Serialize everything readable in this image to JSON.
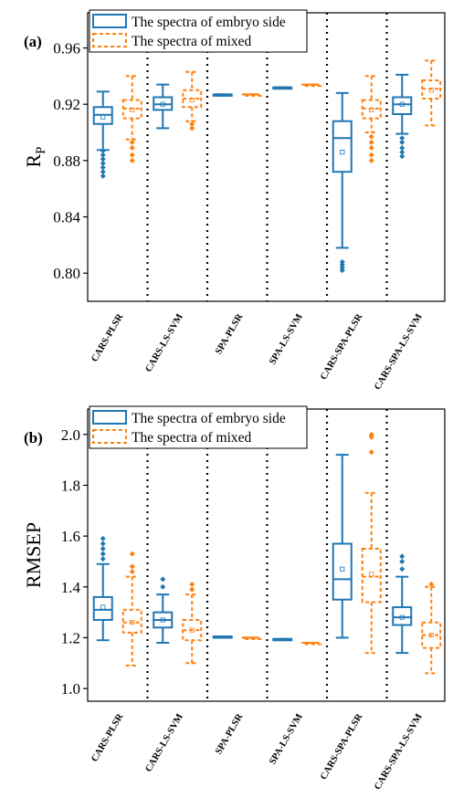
{
  "colors": {
    "embryo": "#1f77b4",
    "mixed": "#ff7f0e",
    "axis": "#000000",
    "separator": "#000000"
  },
  "chart_data": [
    {
      "type": "box",
      "panel_label": "(a)",
      "ylabel_main": "R",
      "ylabel_sub": "P",
      "ylim": [
        0.78,
        0.985
      ],
      "yticks": [
        0.8,
        0.84,
        0.88,
        0.92,
        0.96
      ],
      "ytick_labels": [
        "0.80",
        "0.84",
        "0.88",
        "0.92",
        "0.96"
      ],
      "categories": [
        "CARS-PLSR",
        "CARS-LS-SVM",
        "SPA-PLSR",
        "SPA-LS-SVM",
        "CARS-SPA-PLSR",
        "CARS-SPA-LS-SVM"
      ],
      "legend_position": "top-left",
      "series": [
        {
          "name": "The spectra of embryo side",
          "boxes": [
            {
              "whislo": 0.8875,
              "q1": 0.906,
              "med": 0.9125,
              "q3": 0.918,
              "whishi": 0.929,
              "mean": 0.911,
              "fliers": [
                0.887,
                0.884,
                0.881,
                0.878,
                0.875,
                0.872,
                0.869
              ]
            },
            {
              "whislo": 0.903,
              "q1": 0.916,
              "med": 0.92,
              "q3": 0.925,
              "whishi": 0.934,
              "mean": 0.92,
              "fliers": []
            },
            {
              "whislo": 0.927,
              "q1": 0.927,
              "med": 0.927,
              "q3": 0.927,
              "whishi": 0.927,
              "mean": 0.927,
              "fliers": []
            },
            {
              "whislo": 0.932,
              "q1": 0.932,
              "med": 0.932,
              "q3": 0.932,
              "whishi": 0.932,
              "mean": 0.932,
              "fliers": []
            },
            {
              "whislo": 0.818,
              "q1": 0.872,
              "med": 0.896,
              "q3": 0.908,
              "whishi": 0.928,
              "mean": 0.886,
              "fliers": [
                0.808,
                0.806,
                0.804,
                0.802
              ]
            },
            {
              "whislo": 0.899,
              "q1": 0.913,
              "med": 0.92,
              "q3": 0.925,
              "whishi": 0.941,
              "mean": 0.92,
              "fliers": [
                0.896,
                0.893,
                0.889,
                0.886,
                0.883
              ]
            }
          ]
        },
        {
          "name": "The spectra of mixed",
          "boxes": [
            {
              "whislo": 0.895,
              "q1": 0.91,
              "med": 0.917,
              "q3": 0.923,
              "whishi": 0.94,
              "mean": 0.916,
              "fliers": [
                0.893,
                0.889,
                0.884,
                0.88
              ]
            },
            {
              "whislo": 0.908,
              "q1": 0.918,
              "med": 0.924,
              "q3": 0.93,
              "whishi": 0.943,
              "mean": 0.923,
              "fliers": [
                0.906,
                0.903
              ]
            },
            {
              "whislo": 0.927,
              "q1": 0.927,
              "med": 0.927,
              "q3": 0.927,
              "whishi": 0.927,
              "mean": 0.927,
              "fliers": []
            },
            {
              "whislo": 0.934,
              "q1": 0.934,
              "med": 0.934,
              "q3": 0.934,
              "whishi": 0.934,
              "mean": 0.934,
              "fliers": []
            },
            {
              "whislo": 0.9,
              "q1": 0.91,
              "med": 0.917,
              "q3": 0.923,
              "whishi": 0.94,
              "mean": 0.916,
              "fliers": [
                0.897,
                0.893,
                0.889,
                0.884,
                0.88
              ]
            },
            {
              "whislo": 0.905,
              "q1": 0.924,
              "med": 0.931,
              "q3": 0.937,
              "whishi": 0.951,
              "mean": 0.93,
              "fliers": []
            }
          ]
        }
      ]
    },
    {
      "type": "box",
      "panel_label": "(b)",
      "ylabel_main": "RMSEP",
      "ylabel_sub": "",
      "ylim": [
        0.95,
        2.1
      ],
      "yticks": [
        1.0,
        1.2,
        1.4,
        1.6,
        1.8,
        2.0
      ],
      "ytick_labels": [
        "1.0",
        "1.2",
        "1.4",
        "1.6",
        "1.8",
        "2.0"
      ],
      "categories": [
        "CARS-PLSR",
        "CARS-LS-SVM",
        "SPA-PLSR",
        "SPA-LS-SVM",
        "CARS-SPA-PLSR",
        "CARS-SPA-LS-SVM"
      ],
      "legend_position": "top-left",
      "series": [
        {
          "name": "The spectra of embryo side",
          "boxes": [
            {
              "whislo": 1.19,
              "q1": 1.27,
              "med": 1.31,
              "q3": 1.36,
              "whishi": 1.49,
              "mean": 1.32,
              "fliers": [
                1.51,
                1.53,
                1.55,
                1.57,
                1.59
              ]
            },
            {
              "whislo": 1.18,
              "q1": 1.24,
              "med": 1.27,
              "q3": 1.3,
              "whishi": 1.37,
              "mean": 1.27,
              "fliers": [
                1.4,
                1.43
              ]
            },
            {
              "whislo": 1.205,
              "q1": 1.205,
              "med": 1.205,
              "q3": 1.205,
              "whishi": 1.205,
              "mean": 1.205,
              "fliers": []
            },
            {
              "whislo": 1.195,
              "q1": 1.195,
              "med": 1.195,
              "q3": 1.195,
              "whishi": 1.195,
              "mean": 1.195,
              "fliers": []
            },
            {
              "whislo": 1.2,
              "q1": 1.35,
              "med": 1.43,
              "q3": 1.57,
              "whishi": 1.92,
              "mean": 1.47,
              "fliers": []
            },
            {
              "whislo": 1.14,
              "q1": 1.25,
              "med": 1.28,
              "q3": 1.32,
              "whishi": 1.44,
              "mean": 1.28,
              "fliers": [
                1.47,
                1.5,
                1.52
              ]
            }
          ]
        },
        {
          "name": "The spectra of mixed",
          "boxes": [
            {
              "whislo": 1.09,
              "q1": 1.22,
              "med": 1.26,
              "q3": 1.31,
              "whishi": 1.44,
              "mean": 1.26,
              "fliers": [
                1.46,
                1.48,
                1.53
              ]
            },
            {
              "whislo": 1.1,
              "q1": 1.19,
              "med": 1.23,
              "q3": 1.27,
              "whishi": 1.37,
              "mean": 1.23,
              "fliers": [
                1.39,
                1.41
              ]
            },
            {
              "whislo": 1.2,
              "q1": 1.2,
              "med": 1.2,
              "q3": 1.2,
              "whishi": 1.2,
              "mean": 1.2,
              "fliers": []
            },
            {
              "whislo": 1.18,
              "q1": 1.18,
              "med": 1.18,
              "q3": 1.18,
              "whishi": 1.18,
              "mean": 1.18,
              "fliers": []
            },
            {
              "whislo": 1.14,
              "q1": 1.34,
              "med": 1.44,
              "q3": 1.55,
              "whishi": 1.77,
              "mean": 1.45,
              "fliers": [
                1.93,
                1.99,
                2.0
              ]
            },
            {
              "whislo": 1.06,
              "q1": 1.16,
              "med": 1.21,
              "q3": 1.26,
              "whishi": 1.4,
              "mean": 1.21,
              "fliers": [
                1.41
              ]
            }
          ]
        }
      ]
    }
  ]
}
